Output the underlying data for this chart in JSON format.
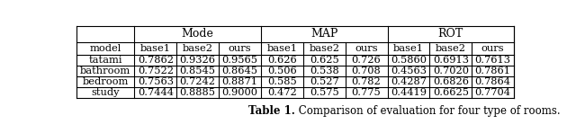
{
  "group_labels": [
    "Mode",
    "MAP",
    "ROT"
  ],
  "sub_headers": [
    "base1",
    "base2",
    "ours",
    "base1",
    "base2",
    "ours",
    "base1",
    "base2",
    "ours"
  ],
  "row_labels": [
    "model",
    "tatami",
    "bathroom",
    "bedroom",
    "study"
  ],
  "table_data": [
    [
      "",
      "",
      "",
      "",
      "",
      "",
      "",
      "",
      ""
    ],
    [
      "0.7862",
      "0.9326",
      "0.9565",
      "0.626",
      "0.625",
      "0.726",
      "0.5860",
      "0.6913",
      "0.7613"
    ],
    [
      "0.7522",
      "0.8545",
      "0.8645",
      "0.506",
      "0.538",
      "0.708",
      "0.4563",
      "0.7020",
      "0.7861"
    ],
    [
      "0.7563",
      "0.7242",
      "0.8871",
      "0.585",
      "0.527",
      "0.782",
      "0.4287",
      "0.6826",
      "0.7864"
    ],
    [
      "0.7444",
      "0.8885",
      "0.9000",
      "0.472",
      "0.575",
      "0.775",
      "0.4419",
      "0.6625",
      "0.7704"
    ]
  ],
  "caption_bold": "Table 1.",
  "caption_rest": " Comparison of evaluation for four type of rooms.",
  "figsize": [
    6.4,
    1.48
  ],
  "dpi": 100,
  "bg_color": "#ffffff",
  "line_color": "#000000",
  "text_color": "#000000",
  "header_fontsize": 9,
  "cell_fontsize": 8.2,
  "caption_fontsize": 8.5
}
